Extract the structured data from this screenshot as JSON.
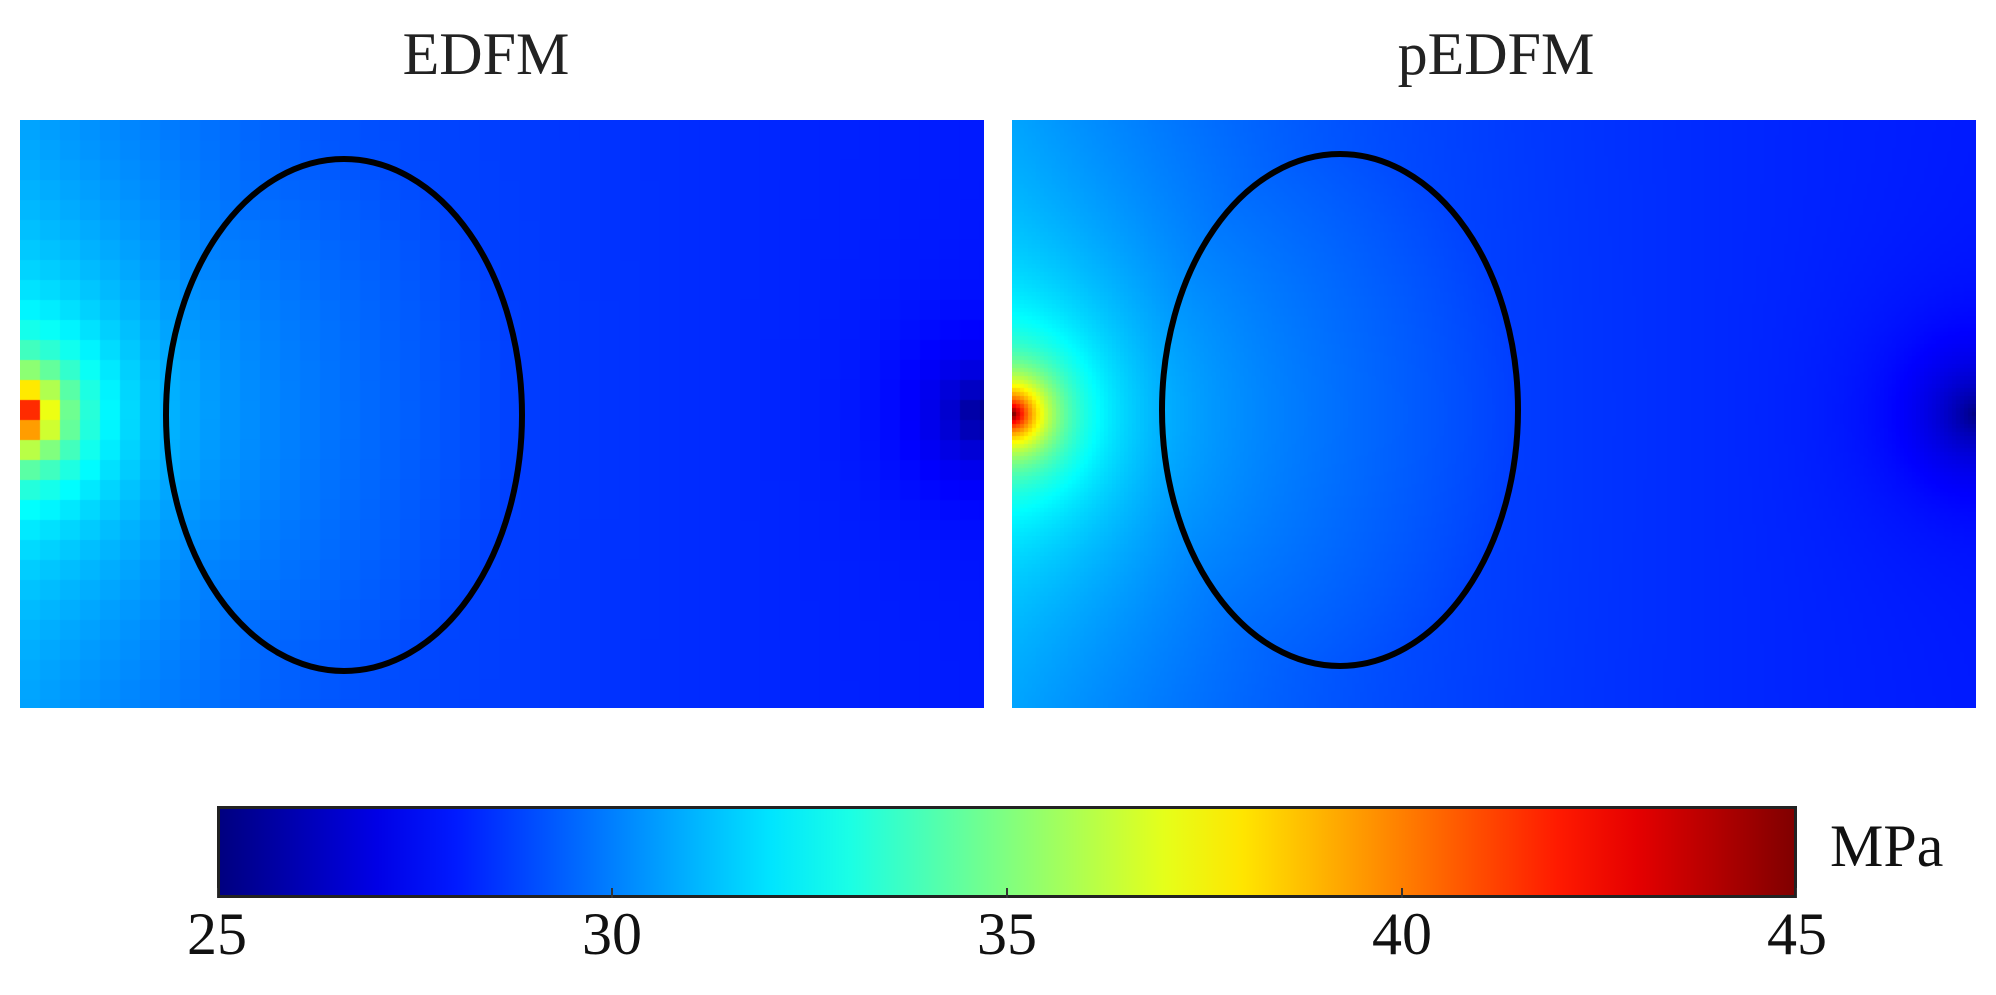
{
  "chart_data": {
    "type": "heatmap",
    "panels": [
      {
        "title": "EDFM",
        "grid": "coarse"
      },
      {
        "title": "pEDFM",
        "grid": "fine"
      }
    ],
    "field": {
      "min": 25,
      "max": 45,
      "background": 28.5,
      "source": {
        "location": "left-middle edge",
        "peak": 41
      },
      "sink": {
        "location": "right-middle edge",
        "trough": 25.5
      },
      "fracture": "ellipse outline, black"
    },
    "colorbar": {
      "colormap": "jet",
      "min": 25,
      "max": 45,
      "ticks": [
        25,
        30,
        35,
        40,
        45
      ],
      "unit": "MPa",
      "placement": "bottom"
    }
  }
}
